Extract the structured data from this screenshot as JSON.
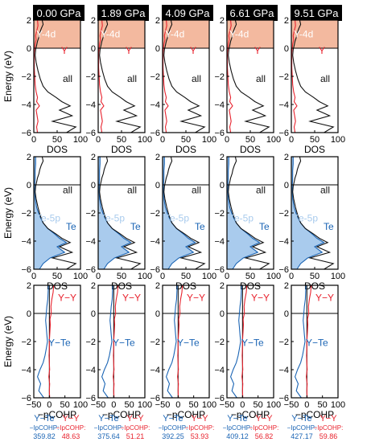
{
  "chart_data": {
    "type": "line",
    "columns": [
      {
        "pressure": "0.00 GPa",
        "icohp_y_te_label": "−IpCOHP:",
        "icohp_y_te": "359.82",
        "icohp_y_y_label": "−IpCOHP:",
        "icohp_y_y": "48.63"
      },
      {
        "pressure": "1.89 GPa",
        "icohp_y_te_label": "−IpCOHP:",
        "icohp_y_te": "375.64",
        "icohp_y_y_label": "−IpCOHP:",
        "icohp_y_y": "51.21"
      },
      {
        "pressure": "4.09 GPa",
        "icohp_y_te_label": "−IpCOHP:",
        "icohp_y_te": "392.25",
        "icohp_y_y_label": "−IpCOHP:",
        "icohp_y_y": "53.93"
      },
      {
        "pressure": "6.61 GPa",
        "icohp_y_te_label": "−IpCOHP:",
        "icohp_y_te": "409.12",
        "icohp_y_y_label": "−IpCOHP:",
        "icohp_y_y": "56.82"
      },
      {
        "pressure": "9.51 GPa",
        "icohp_y_te_label": "−IpCOHP:",
        "icohp_y_te": "427.17",
        "icohp_y_y_label": "−IpCOHP:",
        "icohp_y_y": "59.86"
      }
    ],
    "rows": [
      {
        "row": "Y-DOS",
        "ylabel": "Energy (eV)",
        "xlabel": "DOS",
        "xlim": [
          0,
          100
        ],
        "ylim": [
          -6,
          2
        ],
        "xticks": [
          "0",
          "50",
          "100"
        ],
        "yticks": [
          "2",
          "0",
          "−2",
          "−4",
          "−6"
        ],
        "annotations": {
          "shade": "Y-4d",
          "series1": "Y",
          "series2": "all"
        },
        "series": [
          {
            "name": "Y",
            "color": "#e8232e",
            "points": [
              [
                8,
                2
              ],
              [
                9,
                1.6
              ],
              [
                6,
                1.2
              ],
              [
                4,
                0.9
              ],
              [
                5,
                0.6
              ],
              [
                3,
                0.3
              ],
              [
                2,
                0
              ],
              [
                1,
                -0.3
              ],
              [
                1,
                -0.8
              ],
              [
                1,
                -1.4
              ],
              [
                2,
                -2
              ],
              [
                3,
                -2.6
              ],
              [
                5,
                -3.1
              ],
              [
                8,
                -3.5
              ],
              [
                6,
                -3.8
              ],
              [
                12,
                -4.1
              ],
              [
                5,
                -4.4
              ],
              [
                7,
                -4.8
              ],
              [
                9,
                -5.2
              ],
              [
                6,
                -5.6
              ],
              [
                8,
                -6
              ]
            ]
          },
          {
            "name": "all",
            "color": "#111111",
            "points": [
              [
                18,
                2
              ],
              [
                20,
                1.7
              ],
              [
                16,
                1.4
              ],
              [
                13,
                1.1
              ],
              [
                11,
                0.8
              ],
              [
                8,
                0.5
              ],
              [
                6,
                0.2
              ],
              [
                4,
                -0.1
              ],
              [
                3,
                -0.5
              ],
              [
                5,
                -1
              ],
              [
                9,
                -1.6
              ],
              [
                14,
                -2.2
              ],
              [
                20,
                -2.7
              ],
              [
                30,
                -3.1
              ],
              [
                48,
                -3.5
              ],
              [
                60,
                -3.8
              ],
              [
                78,
                -4.1
              ],
              [
                55,
                -4.4
              ],
              [
                82,
                -4.8
              ],
              [
                40,
                -5.2
              ],
              [
                90,
                -5.6
              ],
              [
                70,
                -6
              ]
            ]
          }
        ]
      },
      {
        "row": "Te-DOS",
        "ylabel": "Energy (eV)",
        "xlabel": "DOS",
        "xlim": [
          0,
          100
        ],
        "ylim": [
          -6,
          2
        ],
        "xticks": [
          "0",
          "50",
          "100"
        ],
        "yticks": [
          "2",
          "0",
          "−2",
          "−4",
          "−6"
        ],
        "annotations": {
          "shade": "Te-5p",
          "series1": "Te",
          "series2": "all"
        },
        "series": [
          {
            "name": "Te",
            "color": "#1a64b4",
            "points": [
              [
                4,
                2
              ],
              [
                4,
                1.5
              ],
              [
                3,
                1
              ],
              [
                3,
                0.5
              ],
              [
                2,
                0
              ],
              [
                2,
                -0.5
              ],
              [
                3,
                -1
              ],
              [
                6,
                -1.6
              ],
              [
                12,
                -2.2
              ],
              [
                20,
                -2.7
              ],
              [
                30,
                -3.1
              ],
              [
                45,
                -3.5
              ],
              [
                55,
                -3.8
              ],
              [
                70,
                -4.1
              ],
              [
                50,
                -4.4
              ],
              [
                66,
                -4.8
              ],
              [
                35,
                -5.2
              ],
              [
                20,
                -5.6
              ],
              [
                12,
                -6
              ]
            ]
          },
          {
            "name": "all",
            "color": "#111111",
            "points": [
              [
                18,
                2
              ],
              [
                20,
                1.7
              ],
              [
                16,
                1.4
              ],
              [
                13,
                1.1
              ],
              [
                11,
                0.8
              ],
              [
                8,
                0.5
              ],
              [
                6,
                0.2
              ],
              [
                4,
                -0.1
              ],
              [
                3,
                -0.5
              ],
              [
                5,
                -1
              ],
              [
                9,
                -1.6
              ],
              [
                14,
                -2.2
              ],
              [
                20,
                -2.7
              ],
              [
                30,
                -3.1
              ],
              [
                48,
                -3.5
              ],
              [
                60,
                -3.8
              ],
              [
                78,
                -4.1
              ],
              [
                55,
                -4.4
              ],
              [
                82,
                -4.8
              ],
              [
                40,
                -5.2
              ],
              [
                90,
                -5.6
              ],
              [
                70,
                -6
              ]
            ]
          }
        ]
      },
      {
        "row": "COHP",
        "ylabel": "Energy (eV)",
        "xlabel": "−pCOHP",
        "xlim": [
          -50,
          100
        ],
        "ylim": [
          -6,
          2
        ],
        "xticks": [
          "−50",
          "0",
          "50",
          "100"
        ],
        "yticks": [
          "2",
          "0",
          "−2",
          "−4",
          "−6"
        ],
        "annotations": {
          "series1": "Y−Y",
          "series2": "Y−Te"
        },
        "series": [
          {
            "name": "Y−Y",
            "color": "#e8232e",
            "points": [
              [
                14,
                2
              ],
              [
                12,
                1.5
              ],
              [
                8,
                1
              ],
              [
                5,
                0.5
              ],
              [
                6,
                0
              ],
              [
                2,
                -0.4
              ],
              [
                3,
                -0.8
              ],
              [
                2,
                -1.2
              ],
              [
                1,
                -1.6
              ],
              [
                0,
                -2
              ],
              [
                0,
                -2.5
              ],
              [
                -1,
                -3
              ],
              [
                0,
                -3.5
              ],
              [
                1,
                -4
              ],
              [
                -2,
                -4.5
              ],
              [
                1,
                -5
              ],
              [
                0,
                -5.5
              ],
              [
                1,
                -6
              ]
            ]
          },
          {
            "name": "Y−Te",
            "color": "#1a64b4",
            "points": [
              [
                -3,
                2
              ],
              [
                -4,
                1.5
              ],
              [
                -5,
                1
              ],
              [
                -8,
                0.5
              ],
              [
                -10,
                0
              ],
              [
                -12,
                -0.5
              ],
              [
                -10,
                -1
              ],
              [
                -8,
                -1.5
              ],
              [
                -6,
                -2
              ],
              [
                -10,
                -2.5
              ],
              [
                -14,
                -3
              ],
              [
                -20,
                -3.5
              ],
              [
                -30,
                -4
              ],
              [
                -38,
                -4.5
              ],
              [
                -28,
                -5
              ],
              [
                -34,
                -5.5
              ],
              [
                -18,
                -6
              ]
            ]
          }
        ]
      }
    ]
  },
  "colors": {
    "y": "#e8232e",
    "te": "#1a64b4",
    "all": "#111111",
    "y4d_fill": "#f3b99f",
    "te5p_fill": "#a9cbed",
    "header_bg": "#000000",
    "header_fg": "#ffffff"
  }
}
